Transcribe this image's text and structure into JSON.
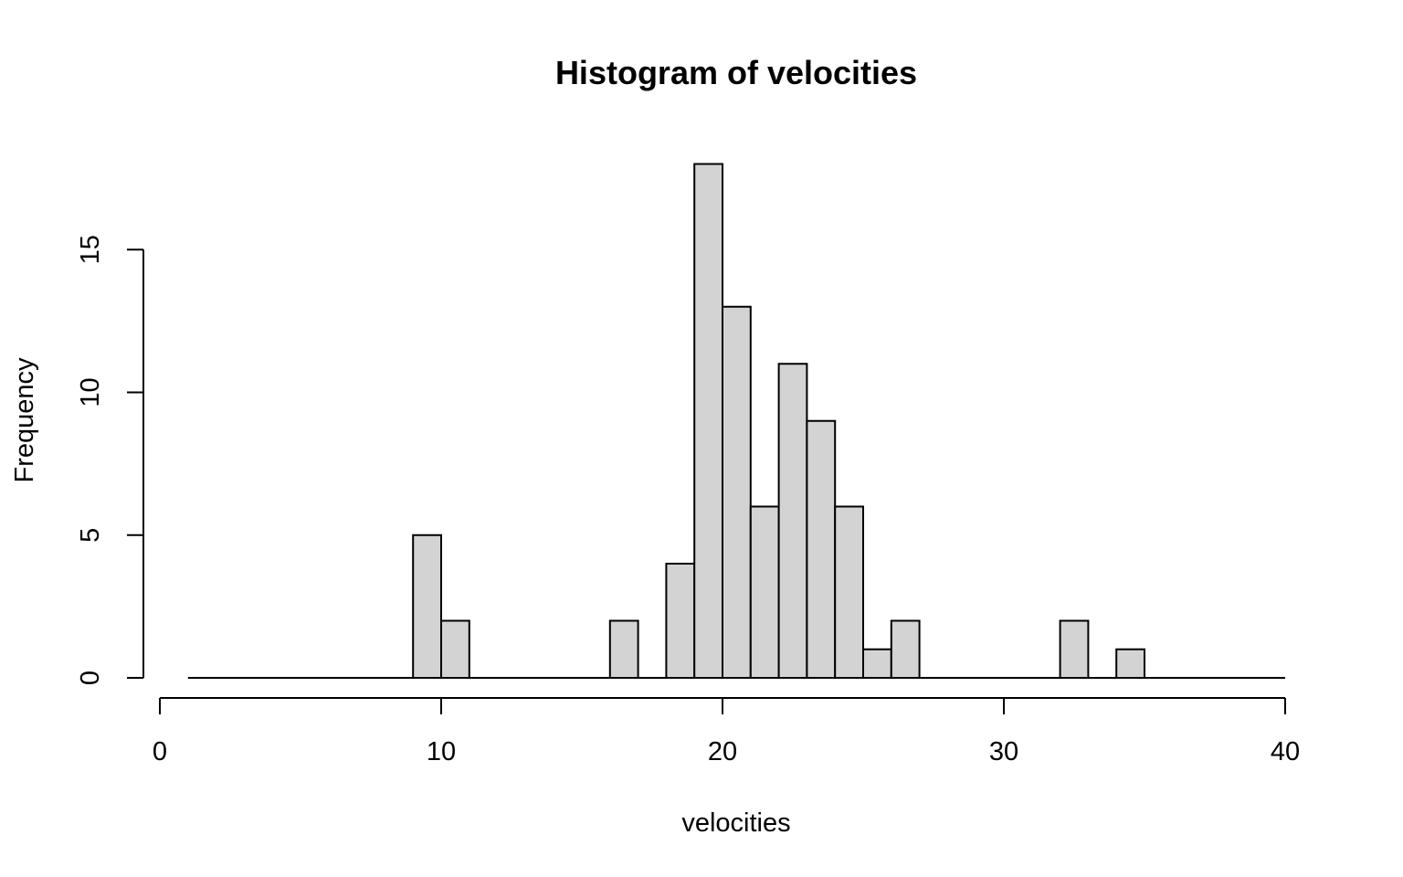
{
  "chart_data": {
    "type": "bar",
    "title": "Histogram of velocities",
    "xlabel": "velocities",
    "ylabel": "Frequency",
    "xlim": [
      0,
      40
    ],
    "ylim": [
      0,
      18
    ],
    "x_ticks": [
      0,
      10,
      20,
      30,
      40
    ],
    "y_ticks": [
      0,
      5,
      10,
      15
    ],
    "bin_width": 1,
    "bin_start": 1,
    "bin_end": 40,
    "bar_fill": "#d3d3d3",
    "bins": [
      {
        "x0": 9,
        "x1": 10,
        "count": 5
      },
      {
        "x0": 10,
        "x1": 11,
        "count": 2
      },
      {
        "x0": 16,
        "x1": 17,
        "count": 2
      },
      {
        "x0": 18,
        "x1": 19,
        "count": 4
      },
      {
        "x0": 19,
        "x1": 20,
        "count": 18
      },
      {
        "x0": 20,
        "x1": 21,
        "count": 13
      },
      {
        "x0": 21,
        "x1": 22,
        "count": 6
      },
      {
        "x0": 22,
        "x1": 23,
        "count": 11
      },
      {
        "x0": 23,
        "x1": 24,
        "count": 9
      },
      {
        "x0": 24,
        "x1": 25,
        "count": 6
      },
      {
        "x0": 25,
        "x1": 26,
        "count": 1
      },
      {
        "x0": 26,
        "x1": 27,
        "count": 2
      },
      {
        "x0": 32,
        "x1": 33,
        "count": 2
      },
      {
        "x0": 34,
        "x1": 35,
        "count": 1
      }
    ]
  }
}
